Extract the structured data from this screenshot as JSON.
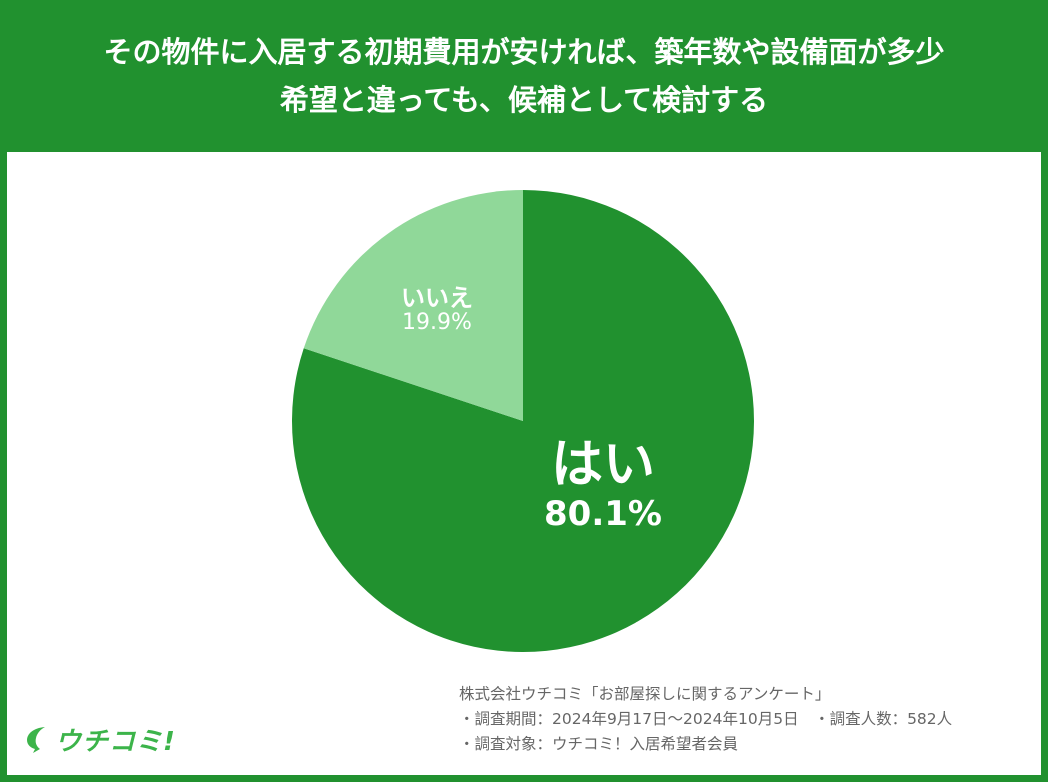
{
  "header": {
    "title_line1": "その物件に入居する初期費用が安ければ、築年数や設備面が多少",
    "title_line2": "希望と違っても、候補として検討する"
  },
  "colors": {
    "frame": "#21912f",
    "yes": "#21912f",
    "no": "#90d899",
    "logo": "#3cb44a"
  },
  "chart_data": {
    "type": "pie",
    "title": "その物件に入居する初期費用が安ければ、築年数や設備面が多少希望と違っても、候補として検討する",
    "categories": [
      "はい",
      "いいえ"
    ],
    "values": [
      80.1,
      19.9
    ],
    "unit": "%",
    "start_angle": "12 o'clock, clockwise",
    "labels_inside": true,
    "legend": "none"
  },
  "labels": {
    "yes_name": "はい",
    "yes_value": "80.1%",
    "no_name": "いいえ",
    "no_value": "19.9%"
  },
  "footer": {
    "source": "株式会社ウチコミ「お部屋探しに関するアンケート」",
    "period": "・調査期間：2024年9月17日～2024年10月5日　・調査人数：582人",
    "target": "・調査対象：ウチコミ！入居希望者会員",
    "logo_text": "ウチコミ!"
  }
}
